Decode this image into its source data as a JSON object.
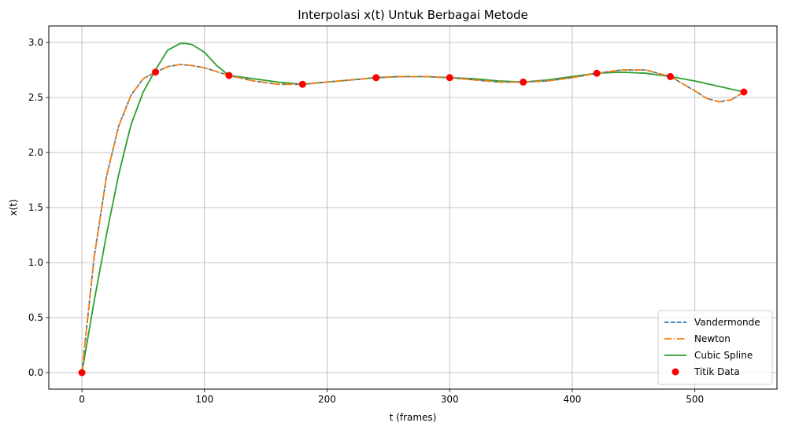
{
  "chart_data": {
    "type": "line",
    "title": "Interpolasi x(t) Untuk Berbagai Metode",
    "xlabel": "t (frames)",
    "ylabel": "x(t)",
    "xlim": [
      -27,
      567
    ],
    "ylim": [
      -0.15,
      3.15
    ],
    "xticks": [
      0,
      100,
      200,
      300,
      400,
      500
    ],
    "yticks": [
      0.0,
      0.5,
      1.0,
      1.5,
      2.0,
      2.5,
      3.0
    ],
    "xtick_labels": [
      "0",
      "100",
      "200",
      "300",
      "400",
      "500"
    ],
    "ytick_labels": [
      "0.0",
      "0.5",
      "1.0",
      "1.5",
      "2.0",
      "2.5",
      "3.0"
    ],
    "grid": true,
    "legend_position": "lower right",
    "series": [
      {
        "name": "Vandermonde",
        "style": "dashed",
        "color": "#1f77b4",
        "x": [
          0,
          10,
          20,
          30,
          40,
          50,
          60,
          70,
          80,
          90,
          100,
          120,
          140,
          160,
          180,
          200,
          220,
          240,
          260,
          280,
          300,
          320,
          340,
          360,
          380,
          400,
          420,
          440,
          460,
          480,
          500,
          510,
          520,
          530,
          540
        ],
        "y": [
          0.0,
          1.05,
          1.78,
          2.24,
          2.52,
          2.67,
          2.73,
          2.78,
          2.8,
          2.79,
          2.77,
          2.7,
          2.65,
          2.62,
          2.62,
          2.64,
          2.66,
          2.68,
          2.69,
          2.69,
          2.68,
          2.66,
          2.64,
          2.64,
          2.65,
          2.68,
          2.72,
          2.75,
          2.75,
          2.69,
          2.56,
          2.49,
          2.46,
          2.48,
          2.55
        ]
      },
      {
        "name": "Newton",
        "style": "dashdot",
        "color": "#ff7f0e",
        "x": [
          0,
          10,
          20,
          30,
          40,
          50,
          60,
          70,
          80,
          90,
          100,
          120,
          140,
          160,
          180,
          200,
          220,
          240,
          260,
          280,
          300,
          320,
          340,
          360,
          380,
          400,
          420,
          440,
          460,
          480,
          500,
          510,
          520,
          530,
          540
        ],
        "y": [
          0.0,
          1.05,
          1.78,
          2.24,
          2.52,
          2.67,
          2.73,
          2.78,
          2.8,
          2.79,
          2.77,
          2.7,
          2.65,
          2.62,
          2.62,
          2.64,
          2.66,
          2.68,
          2.69,
          2.69,
          2.68,
          2.66,
          2.64,
          2.64,
          2.65,
          2.68,
          2.72,
          2.75,
          2.75,
          2.69,
          2.56,
          2.49,
          2.46,
          2.48,
          2.55
        ]
      },
      {
        "name": "Cubic Spline",
        "style": "solid",
        "color": "#2ca02c",
        "x": [
          0,
          10,
          20,
          30,
          40,
          50,
          60,
          70,
          80,
          85,
          90,
          100,
          110,
          120,
          140,
          160,
          180,
          200,
          220,
          240,
          260,
          280,
          300,
          320,
          340,
          360,
          380,
          400,
          420,
          440,
          460,
          480,
          500,
          520,
          540
        ],
        "y": [
          0.0,
          0.65,
          1.25,
          1.8,
          2.25,
          2.55,
          2.75,
          2.93,
          2.99,
          2.99,
          2.98,
          2.91,
          2.79,
          2.7,
          2.67,
          2.64,
          2.62,
          2.64,
          2.66,
          2.68,
          2.69,
          2.69,
          2.68,
          2.67,
          2.65,
          2.64,
          2.66,
          2.69,
          2.72,
          2.73,
          2.72,
          2.69,
          2.65,
          2.6,
          2.55
        ]
      }
    ],
    "points": {
      "name": "Titik Data",
      "color": "#ff0000",
      "x": [
        0,
        60,
        120,
        180,
        240,
        300,
        360,
        420,
        480,
        540
      ],
      "y": [
        0.0,
        2.73,
        2.7,
        2.62,
        2.68,
        2.68,
        2.64,
        2.72,
        2.69,
        2.55
      ]
    }
  }
}
